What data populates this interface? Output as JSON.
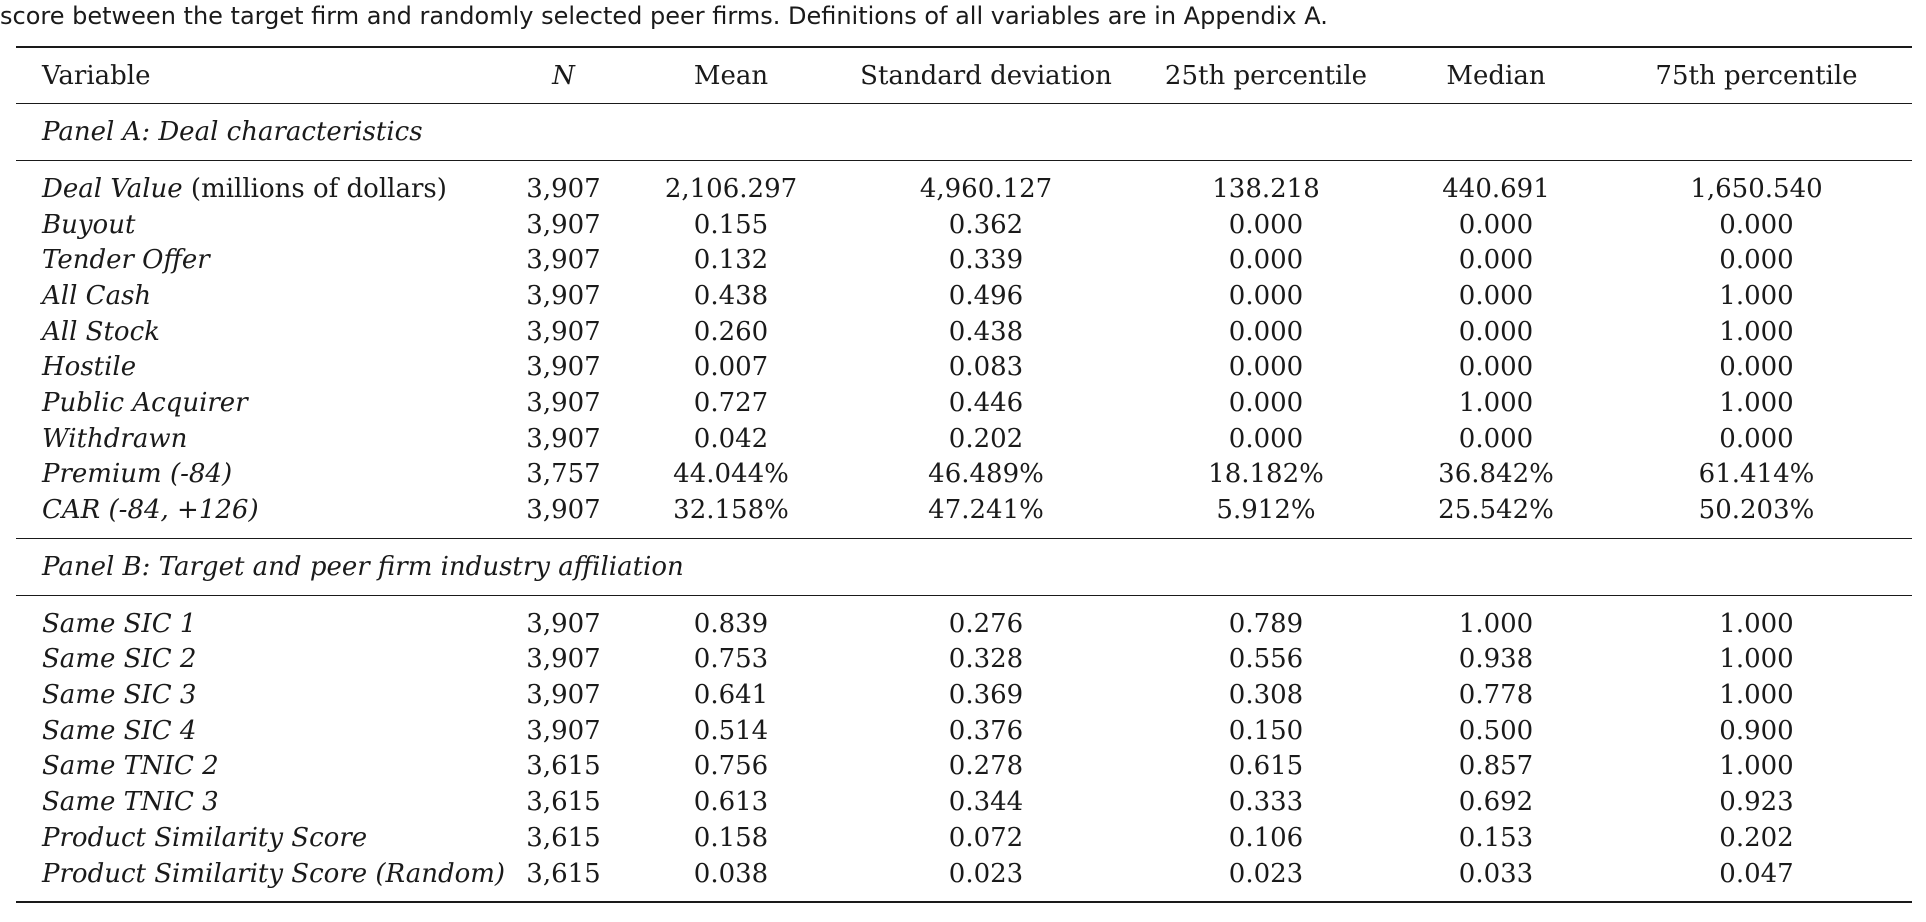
{
  "caption": "score between the target firm and randomly selected peer firms. Definitions of all variables are in Appendix A.",
  "columns": {
    "variable": "Variable",
    "n": "N",
    "mean": "Mean",
    "sd": "Standard deviation",
    "p25": "25th percentile",
    "median": "Median",
    "p75": "75th percentile"
  },
  "panel_a": {
    "title": "Panel A: Deal characteristics",
    "rows": [
      {
        "name": "Deal Value",
        "unit": " (millions of dollars)",
        "n": "3,907",
        "mean": "2,106.297",
        "sd": "4,960.127",
        "p25": "138.218",
        "median": "440.691",
        "p75": "1,650.540"
      },
      {
        "name": "Buyout",
        "unit": "",
        "n": "3,907",
        "mean": "0.155",
        "sd": "0.362",
        "p25": "0.000",
        "median": "0.000",
        "p75": "0.000"
      },
      {
        "name": "Tender Offer",
        "unit": "",
        "n": "3,907",
        "mean": "0.132",
        "sd": "0.339",
        "p25": "0.000",
        "median": "0.000",
        "p75": "0.000"
      },
      {
        "name": "All Cash",
        "unit": "",
        "n": "3,907",
        "mean": "0.438",
        "sd": "0.496",
        "p25": "0.000",
        "median": "0.000",
        "p75": "1.000"
      },
      {
        "name": "All Stock",
        "unit": "",
        "n": "3,907",
        "mean": "0.260",
        "sd": "0.438",
        "p25": "0.000",
        "median": "0.000",
        "p75": "1.000"
      },
      {
        "name": "Hostile",
        "unit": "",
        "n": "3,907",
        "mean": "0.007",
        "sd": "0.083",
        "p25": "0.000",
        "median": "0.000",
        "p75": "0.000"
      },
      {
        "name": "Public Acquirer",
        "unit": "",
        "n": "3,907",
        "mean": "0.727",
        "sd": "0.446",
        "p25": "0.000",
        "median": "1.000",
        "p75": "1.000"
      },
      {
        "name": "Withdrawn",
        "unit": "",
        "n": "3,907",
        "mean": "0.042",
        "sd": "0.202",
        "p25": "0.000",
        "median": "0.000",
        "p75": "0.000"
      },
      {
        "name": "Premium (-84)",
        "unit": "",
        "n": "3,757",
        "mean": "44.044%",
        "sd": "46.489%",
        "p25": "18.182%",
        "median": "36.842%",
        "p75": "61.414%"
      },
      {
        "name": "CAR (-84, +126)",
        "unit": "",
        "n": "3,907",
        "mean": "32.158%",
        "sd": "47.241%",
        "p25": "5.912%",
        "median": "25.542%",
        "p75": "50.203%"
      }
    ]
  },
  "panel_b": {
    "title": "Panel B: Target and peer firm industry affiliation",
    "rows": [
      {
        "name": "Same SIC 1",
        "unit": "",
        "n": "3,907",
        "mean": "0.839",
        "sd": "0.276",
        "p25": "0.789",
        "median": "1.000",
        "p75": "1.000"
      },
      {
        "name": "Same SIC 2",
        "unit": "",
        "n": "3,907",
        "mean": "0.753",
        "sd": "0.328",
        "p25": "0.556",
        "median": "0.938",
        "p75": "1.000"
      },
      {
        "name": "Same SIC 3",
        "unit": "",
        "n": "3,907",
        "mean": "0.641",
        "sd": "0.369",
        "p25": "0.308",
        "median": "0.778",
        "p75": "1.000"
      },
      {
        "name": "Same SIC 4",
        "unit": "",
        "n": "3,907",
        "mean": "0.514",
        "sd": "0.376",
        "p25": "0.150",
        "median": "0.500",
        "p75": "0.900"
      },
      {
        "name": "Same TNIC 2",
        "unit": "",
        "n": "3,615",
        "mean": "0.756",
        "sd": "0.278",
        "p25": "0.615",
        "median": "0.857",
        "p75": "1.000"
      },
      {
        "name": "Same TNIC 3",
        "unit": "",
        "n": "3,615",
        "mean": "0.613",
        "sd": "0.344",
        "p25": "0.333",
        "median": "0.692",
        "p75": "0.923"
      },
      {
        "name": "Product Similarity Score",
        "unit": "",
        "n": "3,615",
        "mean": "0.158",
        "sd": "0.072",
        "p25": "0.106",
        "median": "0.153",
        "p75": "0.202"
      },
      {
        "name": "Product Similarity Score (Random)",
        "unit": "",
        "n": "3,615",
        "mean": "0.038",
        "sd": "0.023",
        "p25": "0.023",
        "median": "0.033",
        "p75": "0.047"
      }
    ]
  }
}
